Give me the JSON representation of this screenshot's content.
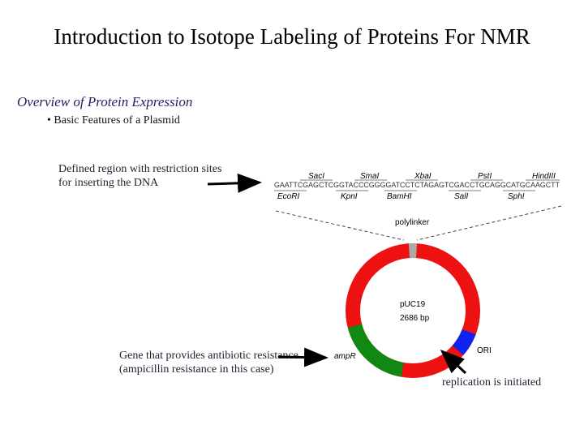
{
  "title": "Introduction to Isotope Labeling of Proteins For NMR",
  "subtitle": "Overview of Protein Expression",
  "bullet": "• Basic Features of a Plasmid",
  "notes": {
    "mcs": "Defined region with restriction sites for inserting the DNA",
    "amp": "Gene that provides antibiotic resistance (ampicillin resistance in this case)",
    "ori": "replication is initiated"
  },
  "polylinker": {
    "sequence": "GAATTCGAGCTCGGTACCCGGGGATCCTCTAGAGTCGACCTGCAGGCATGCAAGCTT",
    "top_sites": [
      "SacI",
      "SmaI",
      "XbaI",
      "PstI",
      "HindIII"
    ],
    "bottom_sites": [
      "EcoRI",
      "KpnI",
      "BamHI",
      "SalI",
      "SphI"
    ],
    "label": "polylinker"
  },
  "plasmid": {
    "name": "pUC19",
    "size": "2686 bp",
    "amp_label": "ampR",
    "ori_label": "ORI"
  },
  "colors": {
    "backbone": "#ee1111",
    "amp": "#118811",
    "ori": "#1122ee",
    "polylinker": "#aaaaaa",
    "text": "#223"
  }
}
